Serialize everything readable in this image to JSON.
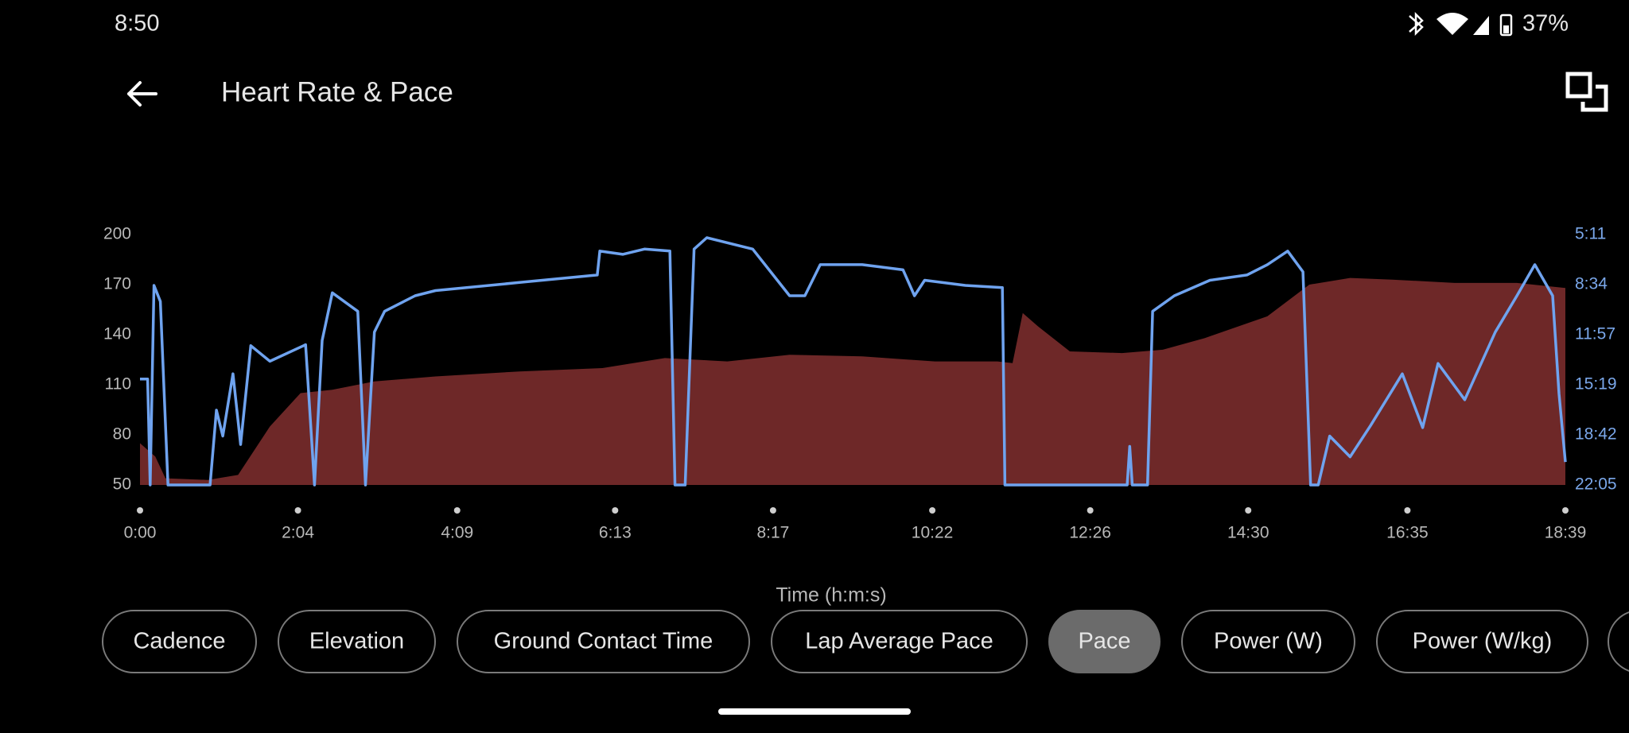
{
  "status_bar": {
    "time": "8:50",
    "battery": "37%"
  },
  "header": {
    "title": "Heart Rate & Pace"
  },
  "chart_data": {
    "type": "line",
    "x_label": "Time (h:m:s)",
    "xlim": [
      0,
      1119
    ],
    "xticks": [
      {
        "value": 0,
        "label": "0:00"
      },
      {
        "value": 124,
        "label": "2:04"
      },
      {
        "value": 249,
        "label": "4:09"
      },
      {
        "value": 373,
        "label": "6:13"
      },
      {
        "value": 497,
        "label": "8:17"
      },
      {
        "value": 622,
        "label": "10:22"
      },
      {
        "value": 746,
        "label": "12:26"
      },
      {
        "value": 870,
        "label": "14:30"
      },
      {
        "value": 995,
        "label": "16:35"
      },
      {
        "value": 1119,
        "label": "18:39"
      }
    ],
    "ylim": [
      50,
      200
    ],
    "yticks": [
      50,
      80,
      110,
      140,
      170,
      200
    ],
    "y2lim": [
      1325,
      311
    ],
    "y2ticks": [
      {
        "value": 311,
        "label": "5:11"
      },
      {
        "value": 514,
        "label": "8:34"
      },
      {
        "value": 717,
        "label": "11:57"
      },
      {
        "value": 919,
        "label": "15:19"
      },
      {
        "value": 1122,
        "label": "18:42"
      },
      {
        "value": 1325,
        "label": "22:05"
      }
    ],
    "y2_color": "#7aa7ea",
    "series": [
      {
        "style": "area",
        "color": "#6e2828",
        "x": [
          0,
          12,
          20,
          53,
          77,
          102,
          126,
          151,
          184,
          232,
          298,
          363,
          412,
          461,
          510,
          567,
          624,
          673,
          685,
          693,
          705,
          730,
          771,
          803,
          836,
          885,
          918,
          950,
          983,
          1032,
          1081,
          1119
        ],
        "values": [
          75,
          67,
          54,
          53,
          56,
          85,
          105,
          107,
          112,
          115,
          118,
          120,
          126,
          124,
          128,
          127,
          124,
          124,
          123,
          153,
          145,
          130,
          129,
          131,
          138,
          151,
          170,
          174,
          173,
          171,
          171,
          168
        ]
      },
      {
        "style": "line",
        "color": "#6fa3ef",
        "axis": "y2",
        "x": [
          0,
          6,
          8,
          11,
          16,
          22,
          55,
          60,
          65,
          73,
          79,
          87,
          102,
          130,
          137,
          143,
          151,
          171,
          177,
          184,
          192,
          216,
          232,
          298,
          359,
          361,
          379,
          396,
          416,
          420,
          428,
          435,
          445,
          481,
          510,
          522,
          534,
          567,
          599,
          608,
          616,
          648,
          677,
          679,
          775,
          777,
          779,
          791,
          795,
          812,
          840,
          869,
          885,
          901,
          913,
          919,
          925,
          934,
          950,
          966,
          991,
          1007,
          1019,
          1040,
          1064,
          1081,
          1095,
          1109,
          1114,
          1119
        ],
        "values": [
          896,
          896,
          1325,
          517,
          582,
          1325,
          1325,
          1022,
          1127,
          875,
          1161,
          761,
          824,
          757,
          1325,
          740,
          547,
          622,
          1325,
          706,
          622,
          559,
          538,
          505,
          475,
          378,
          391,
          370,
          378,
          1325,
          1325,
          370,
          324,
          370,
          559,
          559,
          433,
          433,
          454,
          559,
          496,
          517,
          526,
          1325,
          1325,
          1169,
          1325,
          1325,
          622,
          559,
          496,
          475,
          433,
          378,
          462,
          1325,
          1325,
          1127,
          1211,
          1085,
          875,
          1093,
          833,
          980,
          706,
          559,
          433,
          559,
          955,
          1232
        ]
      }
    ]
  },
  "chips": [
    {
      "label": "Cadence",
      "selected": false
    },
    {
      "label": "Elevation",
      "selected": false
    },
    {
      "label": "Ground Contact Time",
      "selected": false
    },
    {
      "label": "Lap Average Pace",
      "selected": false
    },
    {
      "label": "Pace",
      "selected": true
    },
    {
      "label": "Power (W)",
      "selected": false
    },
    {
      "label": "Power (W/kg)",
      "selected": false
    }
  ]
}
